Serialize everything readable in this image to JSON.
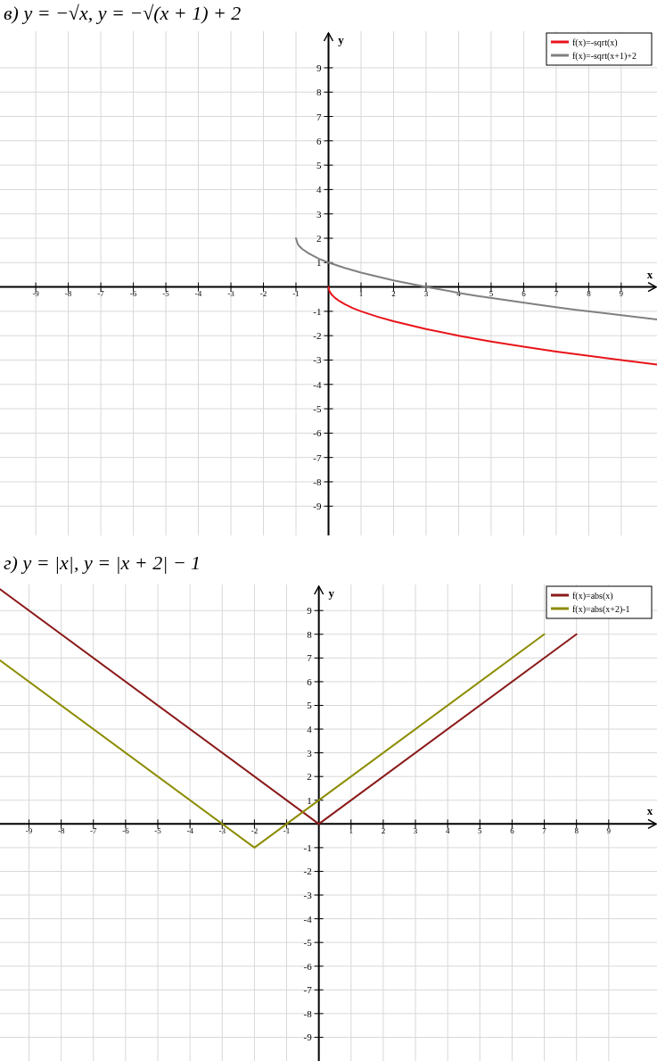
{
  "chart_data": [
    {
      "type": "line",
      "title": "в) y = −√x,        y = −√(x + 1) + 2",
      "xlabel": "x",
      "ylabel": "y",
      "xlim": [
        -10.1,
        10.1
      ],
      "ylim": [
        -10.2,
        10.5
      ],
      "xticks": [
        -9,
        -8,
        -7,
        -6,
        -5,
        -4,
        -3,
        -2,
        -1,
        1,
        2,
        3,
        4,
        5,
        6,
        7,
        8,
        9
      ],
      "yticks": [
        -9,
        -8,
        -7,
        -6,
        -5,
        -4,
        -3,
        -2,
        -1,
        1,
        2,
        3,
        4,
        5,
        6,
        7,
        8,
        9
      ],
      "grid": true,
      "legend": "top right",
      "series": [
        {
          "name": "f(x)=-sqrt(x)",
          "color": "#e8141a",
          "x": [
            0,
            0.02,
            0.05,
            0.1,
            0.2,
            0.35,
            0.5,
            0.75,
            1,
            1.5,
            2,
            3,
            4,
            5,
            6,
            7,
            8,
            9,
            10.1
          ],
          "values": [
            0,
            -0.14,
            -0.22,
            -0.32,
            -0.45,
            -0.59,
            -0.71,
            -0.87,
            -1,
            -1.22,
            -1.41,
            -1.73,
            -2,
            -2.24,
            -2.45,
            -2.65,
            -2.83,
            -3,
            -3.18
          ]
        },
        {
          "name": "f(x)=-sqrt(x+1)+2",
          "color": "#808080",
          "x": [
            -1,
            -0.95,
            -0.9,
            -0.8,
            -0.6,
            -0.3,
            0,
            0.5,
            1,
            2,
            3,
            4,
            4.5,
            5.5,
            6.5,
            7.5,
            8.5,
            10.1
          ],
          "values": [
            2,
            1.78,
            1.68,
            1.55,
            1.37,
            1.16,
            1,
            0.78,
            0.59,
            0.27,
            0,
            -0.24,
            -0.35,
            -0.55,
            -0.74,
            -0.92,
            -1.08,
            -1.33
          ]
        }
      ]
    },
    {
      "type": "line",
      "title": "г) y = |x|,        y = |x + 2| − 1",
      "xlabel": "x",
      "ylabel": "y",
      "xlim": [
        -9.9,
        10.5
      ],
      "ylim": [
        -10,
        10.1
      ],
      "xticks": [
        -9,
        -8,
        -7,
        -6,
        -5,
        -4,
        -3,
        -2,
        -1,
        1,
        2,
        3,
        4,
        5,
        6,
        7,
        8,
        9
      ],
      "yticks": [
        -9,
        -8,
        -7,
        -6,
        -5,
        -4,
        -3,
        -2,
        -1,
        1,
        2,
        3,
        4,
        5,
        6,
        7,
        8,
        9
      ],
      "grid": true,
      "legend": "top right",
      "series": [
        {
          "name": "f(x)=abs(x)",
          "color": "#8b1a1a",
          "x": [
            -9.9,
            0,
            8
          ],
          "values": [
            9.9,
            0,
            8
          ]
        },
        {
          "name": "f(x)=abs(x+2)-1",
          "color": "#8c8c00",
          "x": [
            -9.9,
            -2,
            7
          ],
          "values": [
            6.9,
            -1,
            8
          ]
        }
      ]
    }
  ]
}
